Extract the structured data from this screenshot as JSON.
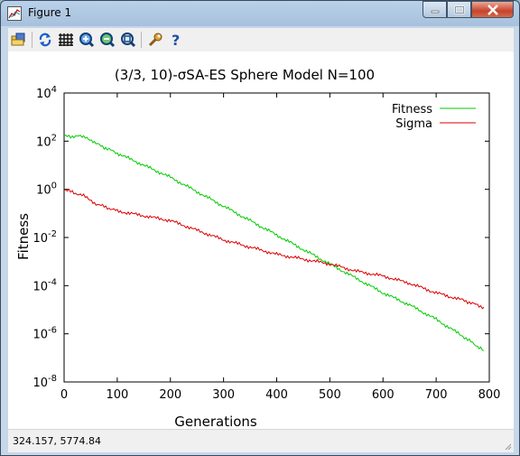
{
  "window": {
    "title": "Figure 1"
  },
  "toolbar": {
    "icons": [
      "open-icon",
      "refresh-icon",
      "grid-icon",
      "zoom-in-icon",
      "zoom-out-icon",
      "zoom-fit-icon",
      "settings-icon",
      "help-icon"
    ]
  },
  "chart_data": {
    "type": "line",
    "title": "(3/3, 10)-σSA-ES Sphere Model N=100",
    "xlabel": "Generations",
    "ylabel": "Fitness",
    "xlim": [
      0,
      800
    ],
    "ylim_log10": [
      -8,
      4
    ],
    "yscale": "log",
    "grid": false,
    "legend_placement": "top-right",
    "x_ticks": [
      "0",
      "100",
      "200",
      "300",
      "400",
      "500",
      "600",
      "700",
      "800"
    ],
    "y_ticks": [
      {
        "base": "10",
        "exp": "4"
      },
      {
        "base": "10",
        "exp": "2"
      },
      {
        "base": "10",
        "exp": "0"
      },
      {
        "base": "10",
        "exp": "-2"
      },
      {
        "base": "10",
        "exp": "-4"
      },
      {
        "base": "10",
        "exp": "-6"
      },
      {
        "base": "10",
        "exp": "-8"
      }
    ],
    "series": [
      {
        "name": "Fitness",
        "color": "#00cc00",
        "x": [
          0,
          40,
          60,
          100,
          150,
          200,
          250,
          300,
          350,
          400,
          450,
          500,
          550,
          600,
          650,
          700,
          750,
          790
        ],
        "log10_y": [
          2.2,
          2.2,
          1.9,
          1.5,
          1.0,
          0.5,
          -0.1,
          -0.7,
          -1.3,
          -1.9,
          -2.5,
          -3.1,
          -3.7,
          -4.3,
          -4.8,
          -5.4,
          -6.1,
          -6.7
        ]
      },
      {
        "name": "Sigma",
        "color": "#dd0000",
        "x": [
          0,
          40,
          60,
          100,
          150,
          200,
          250,
          300,
          350,
          400,
          450,
          500,
          550,
          600,
          650,
          700,
          750,
          790
        ],
        "log10_y": [
          0.0,
          -0.3,
          -0.6,
          -0.9,
          -1.1,
          -1.3,
          -1.7,
          -2.1,
          -2.4,
          -2.7,
          -2.9,
          -3.1,
          -3.4,
          -3.6,
          -3.9,
          -4.3,
          -4.6,
          -4.9
        ]
      }
    ]
  },
  "status": {
    "coordinates": "324.157,  5774.84"
  }
}
